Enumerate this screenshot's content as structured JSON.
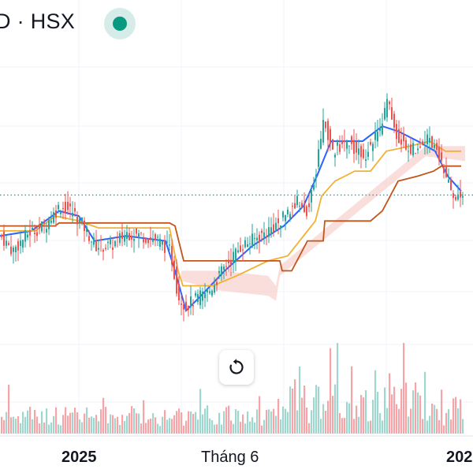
{
  "header": {
    "symbol_text": "D · HSX",
    "status": "live"
  },
  "colors": {
    "up": "#26a69a",
    "down": "#ef5350",
    "vol_up": "#9fd7cf",
    "vol_down": "#f5a5a8",
    "fast_line": "#2962ff",
    "slow_line": "#f2b134",
    "base_line": "#c0561b",
    "cloud": "#f8d3cf",
    "dotted_line": "#26a69a",
    "grid": "#f0f3fa"
  },
  "chart_data": {
    "type": "candlestick",
    "title": "",
    "x_tick_labels": [
      "2025",
      "Tháng 6",
      "202"
    ],
    "reference_level": 31.6,
    "ylim": [
      14,
      48
    ],
    "series": [
      {
        "name": "",
        "kind": "candles",
        "close_path": [
          [
            0,
            27.5
          ],
          [
            15,
            26.0
          ],
          [
            35,
            27.8
          ],
          [
            55,
            28.5
          ],
          [
            75,
            30.5
          ],
          [
            90,
            30.0
          ],
          [
            105,
            28.5
          ],
          [
            120,
            26.5
          ],
          [
            140,
            26.5
          ],
          [
            160,
            27.8
          ],
          [
            180,
            27.5
          ],
          [
            200,
            27.0
          ],
          [
            215,
            26.0
          ],
          [
            225,
            21.5
          ],
          [
            235,
            20.5
          ],
          [
            245,
            21.0
          ],
          [
            265,
            22.0
          ],
          [
            285,
            24.5
          ],
          [
            305,
            26.5
          ],
          [
            330,
            27.5
          ],
          [
            355,
            29.0
          ],
          [
            375,
            31.0
          ],
          [
            390,
            30.0
          ],
          [
            400,
            34.0
          ],
          [
            410,
            39.5
          ],
          [
            420,
            36.0
          ],
          [
            440,
            37.0
          ],
          [
            460,
            35.5
          ],
          [
            480,
            38.0
          ],
          [
            490,
            41.0
          ],
          [
            500,
            38.0
          ],
          [
            520,
            36.0
          ],
          [
            540,
            37.5
          ],
          [
            555,
            36.0
          ],
          [
            565,
            33.0
          ],
          [
            575,
            31.5
          ],
          [
            588,
            31.5
          ]
        ]
      },
      {
        "name": "",
        "kind": "line",
        "role": "fast",
        "points": [
          [
            0,
            27.5
          ],
          [
            40,
            28.0
          ],
          [
            75,
            30.0
          ],
          [
            100,
            29.5
          ],
          [
            120,
            27.0
          ],
          [
            160,
            27.5
          ],
          [
            210,
            27.0
          ],
          [
            222,
            24.0
          ],
          [
            236,
            20.0
          ],
          [
            255,
            21.5
          ],
          [
            285,
            24.0
          ],
          [
            320,
            26.5
          ],
          [
            360,
            28.5
          ],
          [
            385,
            30.5
          ],
          [
            402,
            33.5
          ],
          [
            420,
            37.0
          ],
          [
            460,
            37.0
          ],
          [
            485,
            38.5
          ],
          [
            505,
            38.0
          ],
          [
            530,
            37.0
          ],
          [
            552,
            36.0
          ],
          [
            568,
            33.5
          ],
          [
            585,
            32.0
          ]
        ]
      },
      {
        "name": "",
        "kind": "line",
        "role": "slow",
        "points": [
          [
            0,
            28.0
          ],
          [
            45,
            28.0
          ],
          [
            70,
            29.5
          ],
          [
            100,
            29.0
          ],
          [
            125,
            28.3
          ],
          [
            170,
            28.3
          ],
          [
            215,
            28.3
          ],
          [
            226,
            24.0
          ],
          [
            232,
            22.5
          ],
          [
            270,
            22.5
          ],
          [
            300,
            23.5
          ],
          [
            340,
            25.0
          ],
          [
            365,
            25.5
          ],
          [
            385,
            27.5
          ],
          [
            400,
            29.0
          ],
          [
            408,
            31.5
          ],
          [
            425,
            33.0
          ],
          [
            450,
            34.0
          ],
          [
            470,
            34.0
          ],
          [
            490,
            36.0
          ],
          [
            520,
            36.5
          ],
          [
            545,
            37.0
          ],
          [
            565,
            36.0
          ],
          [
            585,
            36.0
          ]
        ]
      },
      {
        "name": "",
        "kind": "line",
        "role": "base",
        "points": [
          [
            0,
            28.5
          ],
          [
            70,
            28.5
          ],
          [
            75,
            28.8
          ],
          [
            215,
            28.8
          ],
          [
            222,
            28.5
          ],
          [
            233,
            25.0
          ],
          [
            355,
            25.0
          ],
          [
            358,
            24.0
          ],
          [
            370,
            24.0
          ],
          [
            390,
            27.0
          ],
          [
            410,
            27.0
          ],
          [
            412,
            29.0
          ],
          [
            470,
            29.0
          ],
          [
            485,
            30.0
          ],
          [
            495,
            31.5
          ],
          [
            505,
            33.0
          ],
          [
            530,
            33.5
          ],
          [
            550,
            34.0
          ],
          [
            560,
            34.5
          ],
          [
            585,
            34.5
          ]
        ]
      },
      {
        "name": "",
        "kind": "cloud",
        "upper": [
          [
            230,
            24.0
          ],
          [
            280,
            24.0
          ],
          [
            340,
            23.5
          ],
          [
            350,
            22.5
          ],
          [
            355,
            24.5
          ],
          [
            540,
            36.5
          ],
          [
            590,
            36.5
          ]
        ],
        "lower": [
          [
            230,
            23.0
          ],
          [
            280,
            22.0
          ],
          [
            340,
            21.5
          ],
          [
            350,
            21.0
          ],
          [
            355,
            23.5
          ],
          [
            540,
            35.5
          ],
          [
            590,
            35.0
          ]
        ]
      },
      {
        "name": "",
        "kind": "volume",
        "max_height_fraction": 1.0
      }
    ]
  }
}
